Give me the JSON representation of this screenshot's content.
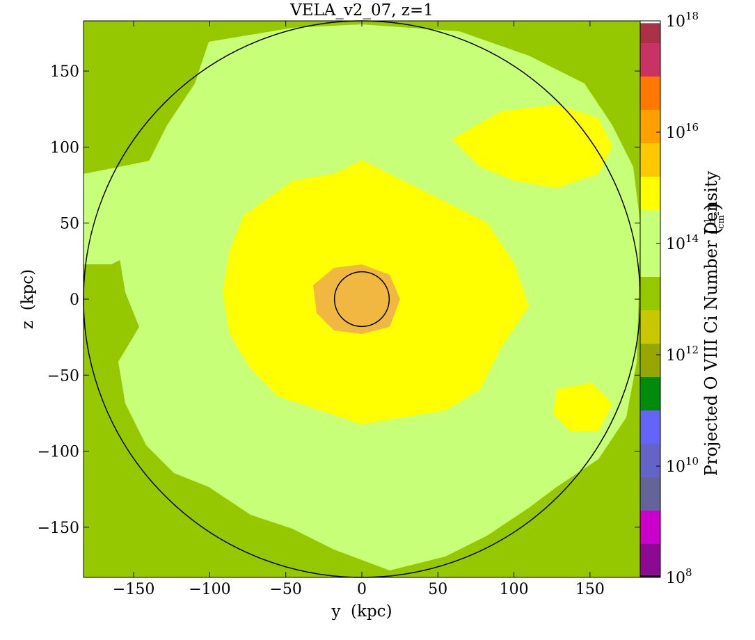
{
  "chart_data": {
    "type": "heatmap",
    "title": "VELA_v2_07, z=1",
    "xlabel": "y  (kpc)",
    "ylabel": "z  (kpc)",
    "xlim": [
      -183,
      183
    ],
    "ylim": [
      -183,
      183
    ],
    "x_ticks": [
      -150,
      -100,
      -50,
      0,
      50,
      100,
      150
    ],
    "x_tick_labels": [
      "−150",
      "−100",
      "−50",
      "0",
      "50",
      "100",
      "150"
    ],
    "y_ticks": [
      150,
      100,
      50,
      0,
      -50,
      -100,
      -150
    ],
    "y_tick_labels": [
      "150",
      "100",
      "50",
      "0",
      "−50",
      "−100",
      "−150"
    ],
    "colorbar": {
      "label": "Projected O VIII Ci Number Density",
      "unit_numerator": "1",
      "unit_denominator": "cm",
      "unit_denominator_exponent": "2",
      "scale": "log",
      "range_log10": [
        8,
        18
      ],
      "tick_log10": [
        8,
        10,
        12,
        14,
        16,
        18
      ],
      "tick_base": "10",
      "tick_exponents": [
        "8",
        "10",
        "12",
        "14",
        "16",
        "18"
      ],
      "bands": [
        {
          "from": 8.0,
          "to": 8.04,
          "color": "#1a0b1e"
        },
        {
          "from": 8.04,
          "to": 8.6,
          "color": "#8c0a91"
        },
        {
          "from": 8.6,
          "to": 9.2,
          "color": "#cc00cc"
        },
        {
          "from": 9.2,
          "to": 9.8,
          "color": "#646498"
        },
        {
          "from": 9.8,
          "to": 10.4,
          "color": "#6464c8"
        },
        {
          "from": 10.4,
          "to": 11.0,
          "color": "#6464fa"
        },
        {
          "from": 11.0,
          "to": 11.6,
          "color": "#008c0a"
        },
        {
          "from": 11.6,
          "to": 12.2,
          "color": "#96a800"
        },
        {
          "from": 12.2,
          "to": 12.8,
          "color": "#c8c800"
        },
        {
          "from": 12.8,
          "to": 13.4,
          "color": "#96c800"
        },
        {
          "from": 13.4,
          "to": 14.6,
          "color": "#c8ff78"
        },
        {
          "from": 14.6,
          "to": 15.2,
          "color": "#ffff00"
        },
        {
          "from": 15.2,
          "to": 15.8,
          "color": "#ffc800"
        },
        {
          "from": 15.8,
          "to": 16.4,
          "color": "#ffa000"
        },
        {
          "from": 16.4,
          "to": 17.0,
          "color": "#ff7800"
        },
        {
          "from": 17.0,
          "to": 17.6,
          "color": "#c83264"
        },
        {
          "from": 17.6,
          "to": 17.96,
          "color": "#aa3246"
        },
        {
          "from": 17.96,
          "to": 18.0,
          "color": "#ffffff"
        }
      ]
    },
    "map_regions": [
      {
        "level": "outer",
        "color": "#96c800"
      },
      {
        "level": "mid",
        "color": "#c8ff78"
      },
      {
        "level": "high",
        "color": "#ffff00"
      },
      {
        "level": "core",
        "color": "#f0b840"
      }
    ],
    "circles_kpc": [
      {
        "name": "virial-radius-circle",
        "cx": 0,
        "cy": 0,
        "r": 183
      },
      {
        "name": "galaxy-circle",
        "cx": 0,
        "cy": 0,
        "r": 18
      }
    ]
  }
}
